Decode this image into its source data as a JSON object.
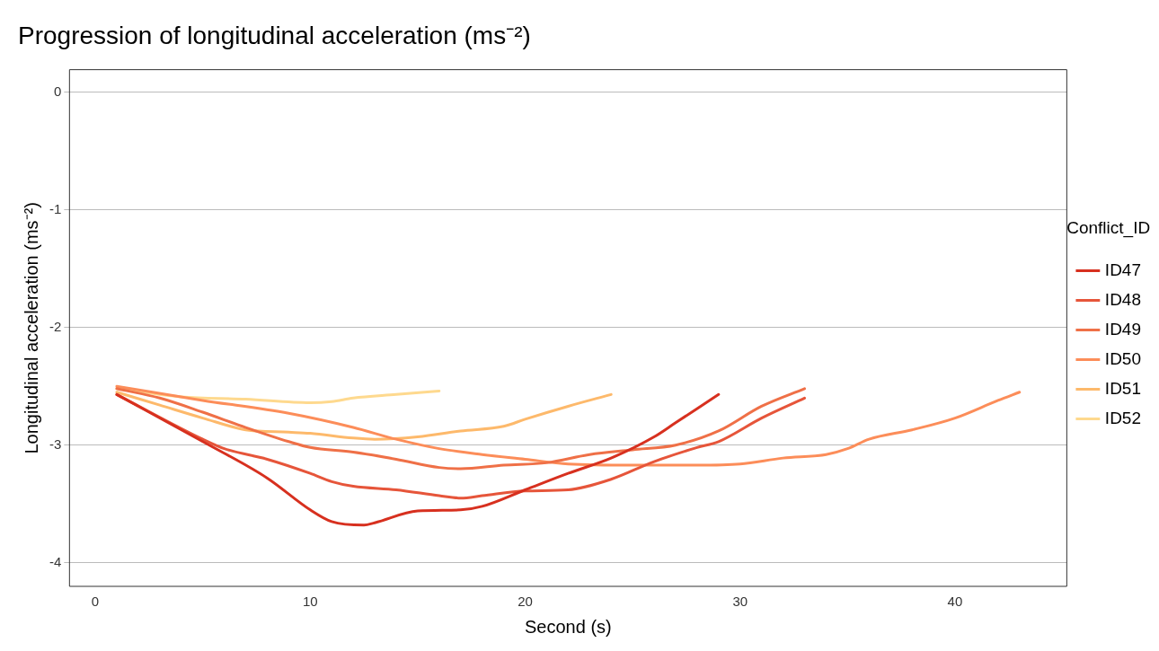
{
  "chart_data": {
    "type": "line",
    "title": "Progression of longitudinal acceleration (ms⁻²)",
    "xlabel": "Second (s)",
    "ylabel": "Longitudinal acceleration (ms⁻²)",
    "legend_title": "Conflict_ID",
    "legend": "right",
    "grid": "y",
    "marker": "none",
    "line_style": "solid",
    "xlim": [
      -1.2,
      45.2
    ],
    "xticks": [
      0,
      10,
      20,
      30,
      40
    ],
    "ylim": [
      -4.2,
      0.19
    ],
    "yticks": [
      0,
      -1,
      -2,
      -3,
      -4
    ],
    "series": [
      {
        "name": "ID47",
        "color": "#d7301f",
        "x": [
          1,
          5,
          8,
          10,
          11,
          12.5,
          13,
          15,
          17,
          18,
          20,
          22,
          24,
          26,
          27,
          29
        ],
        "values": [
          -2.57,
          -2.97,
          -3.28,
          -3.55,
          -3.65,
          -3.68,
          -3.66,
          -3.56,
          -3.55,
          -3.52,
          -3.38,
          -3.24,
          -3.11,
          -2.93,
          -2.81,
          -2.57
        ]
      },
      {
        "name": "ID48",
        "color": "#e6553a",
        "x": [
          1,
          5,
          6,
          8,
          10,
          11,
          12,
          14,
          16,
          17,
          18,
          20,
          22,
          24,
          26,
          28,
          29,
          31,
          33
        ],
        "values": [
          -2.57,
          -2.95,
          -3.03,
          -3.12,
          -3.24,
          -3.31,
          -3.35,
          -3.38,
          -3.43,
          -3.45,
          -3.43,
          -3.39,
          -3.38,
          -3.29,
          -3.14,
          -3.02,
          -2.97,
          -2.77,
          -2.6
        ]
      },
      {
        "name": "ID49",
        "color": "#ef7047",
        "x": [
          1,
          3,
          5,
          7,
          9,
          10,
          12,
          14,
          16,
          17,
          19,
          21,
          23,
          25,
          27,
          29,
          31,
          33
        ],
        "values": [
          -2.52,
          -2.6,
          -2.72,
          -2.85,
          -2.97,
          -3.02,
          -3.06,
          -3.12,
          -3.19,
          -3.2,
          -3.17,
          -3.15,
          -3.08,
          -3.04,
          -3.0,
          -2.88,
          -2.67,
          -2.52
        ]
      },
      {
        "name": "ID50",
        "color": "#fc8d59",
        "x": [
          1,
          5,
          9,
          12,
          14,
          16,
          18,
          20,
          22,
          25,
          28,
          30,
          32,
          34,
          35,
          36,
          38,
          40,
          42,
          43
        ],
        "values": [
          -2.5,
          -2.62,
          -2.73,
          -2.85,
          -2.95,
          -3.03,
          -3.08,
          -3.12,
          -3.16,
          -3.17,
          -3.17,
          -3.16,
          -3.11,
          -3.08,
          -3.03,
          -2.95,
          -2.87,
          -2.77,
          -2.62,
          -2.55
        ]
      },
      {
        "name": "ID51",
        "color": "#fdb96b",
        "x": [
          1,
          3,
          5,
          7,
          9,
          10,
          12,
          13,
          15,
          17,
          19,
          20,
          22,
          24
        ],
        "values": [
          -2.55,
          -2.66,
          -2.77,
          -2.87,
          -2.89,
          -2.9,
          -2.94,
          -2.95,
          -2.93,
          -2.88,
          -2.84,
          -2.78,
          -2.67,
          -2.57
        ]
      },
      {
        "name": "ID52",
        "color": "#fed98e",
        "x": [
          1,
          4,
          7,
          10,
          11,
          12,
          14,
          16
        ],
        "values": [
          -2.52,
          -2.59,
          -2.61,
          -2.64,
          -2.63,
          -2.6,
          -2.57,
          -2.54
        ]
      }
    ]
  }
}
